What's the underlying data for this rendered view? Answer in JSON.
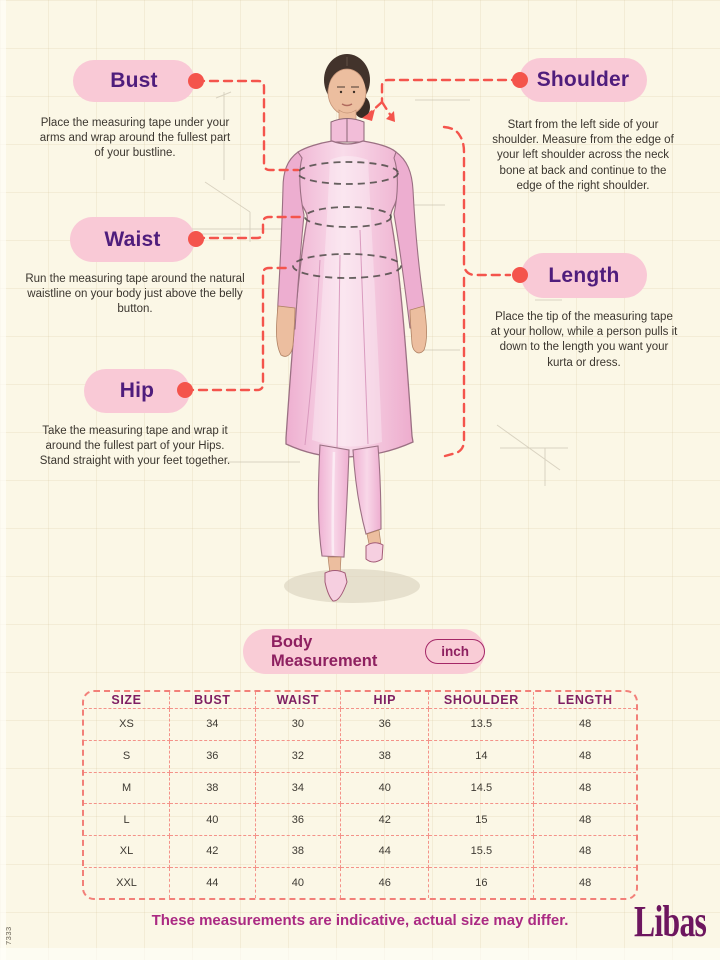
{
  "page": {
    "side_code": "7333",
    "footer_note": "These measurements are indicative, actual size may differ.",
    "brand_logo": "Libas"
  },
  "colors": {
    "background": "#fbf7e6",
    "pill_pink": "#f9c9d6",
    "label_purple": "#4f1d7c",
    "accent_red": "#f4544c",
    "table_border_dashed": "#f28079",
    "table_header_magenta": "#7e1f62",
    "footer_magenta": "#ab2a83",
    "logo_plum": "#6d165f",
    "garment_pink": "#f4c2da"
  },
  "measurements": [
    {
      "id": "bust",
      "label": "Bust",
      "description": "Place the measuring tape under your arms and wrap around the fullest part of your bustline."
    },
    {
      "id": "waist",
      "label": "Waist",
      "description": "Run the measuring tape around the natural waistline on your body just above the belly button."
    },
    {
      "id": "hip",
      "label": "Hip",
      "description": "Take the measuring tape and wrap it around the fullest part of your Hips. Stand straight with your feet together."
    },
    {
      "id": "shoulder",
      "label": "Shoulder",
      "description": "Start from the left side of your shoulder. Measure from the edge of your left shoulder across the neck bone at back and continue to the edge of the right shoulder."
    },
    {
      "id": "length",
      "label": "Length",
      "description": "Place the tip of the measuring tape at your hollow, while a person pulls it down to the length you want your kurta or dress."
    }
  ],
  "size_chart": {
    "title": "Body Measurement",
    "unit_label": "inch",
    "columns": [
      "SIZE",
      "BUST",
      "WAIST",
      "HIP",
      "SHOULDER",
      "LENGTH"
    ],
    "rows": [
      [
        "XS",
        "34",
        "30",
        "36",
        "13.5",
        "48"
      ],
      [
        "S",
        "36",
        "32",
        "38",
        "14",
        "48"
      ],
      [
        "M",
        "38",
        "34",
        "40",
        "14.5",
        "48"
      ],
      [
        "L",
        "40",
        "36",
        "42",
        "15",
        "48"
      ],
      [
        "XL",
        "42",
        "38",
        "44",
        "15.5",
        "48"
      ],
      [
        "XXL",
        "44",
        "40",
        "46",
        "16",
        "48"
      ]
    ]
  }
}
